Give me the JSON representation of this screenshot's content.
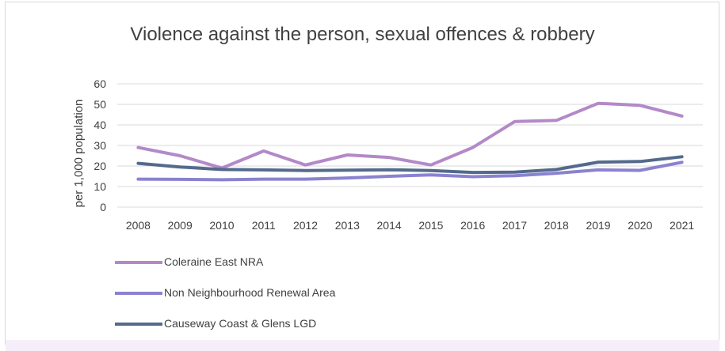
{
  "chart_data": {
    "type": "line",
    "title": "Violence against the person, sexual offences & robbery",
    "ylabel": "per 1,000 population",
    "xlabel": "",
    "ylim": [
      0,
      60
    ],
    "yticks": [
      0,
      10,
      20,
      30,
      40,
      50,
      60
    ],
    "grid": true,
    "legend_position": "bottom-left",
    "categories": [
      "2008",
      "2009",
      "2010",
      "2011",
      "2012",
      "2013",
      "2014",
      "2015",
      "2016",
      "2017",
      "2018",
      "2019",
      "2020",
      "2021"
    ],
    "series": [
      {
        "name": "Coleraine East NRA",
        "color": "#b389c8",
        "values": [
          29,
          25,
          19,
          27.3,
          20.5,
          25.4,
          24.2,
          20.5,
          29,
          41.6,
          42.2,
          50.5,
          49.5,
          44.3
        ]
      },
      {
        "name": "Non Neighbourhood Renewal Area",
        "color": "#8a82d0",
        "values": [
          13.6,
          13.5,
          13.3,
          13.6,
          13.6,
          14.2,
          15,
          15.7,
          14.8,
          15.3,
          16.5,
          18.1,
          17.9,
          21.8
        ]
      },
      {
        "name": "Causeway Coast & Glens LGD",
        "color": "#536a8c",
        "values": [
          21.3,
          19.5,
          18.3,
          18.1,
          17.8,
          18,
          18.2,
          17.8,
          16.9,
          17,
          18.3,
          21.9,
          22.2,
          24.5
        ]
      }
    ]
  }
}
